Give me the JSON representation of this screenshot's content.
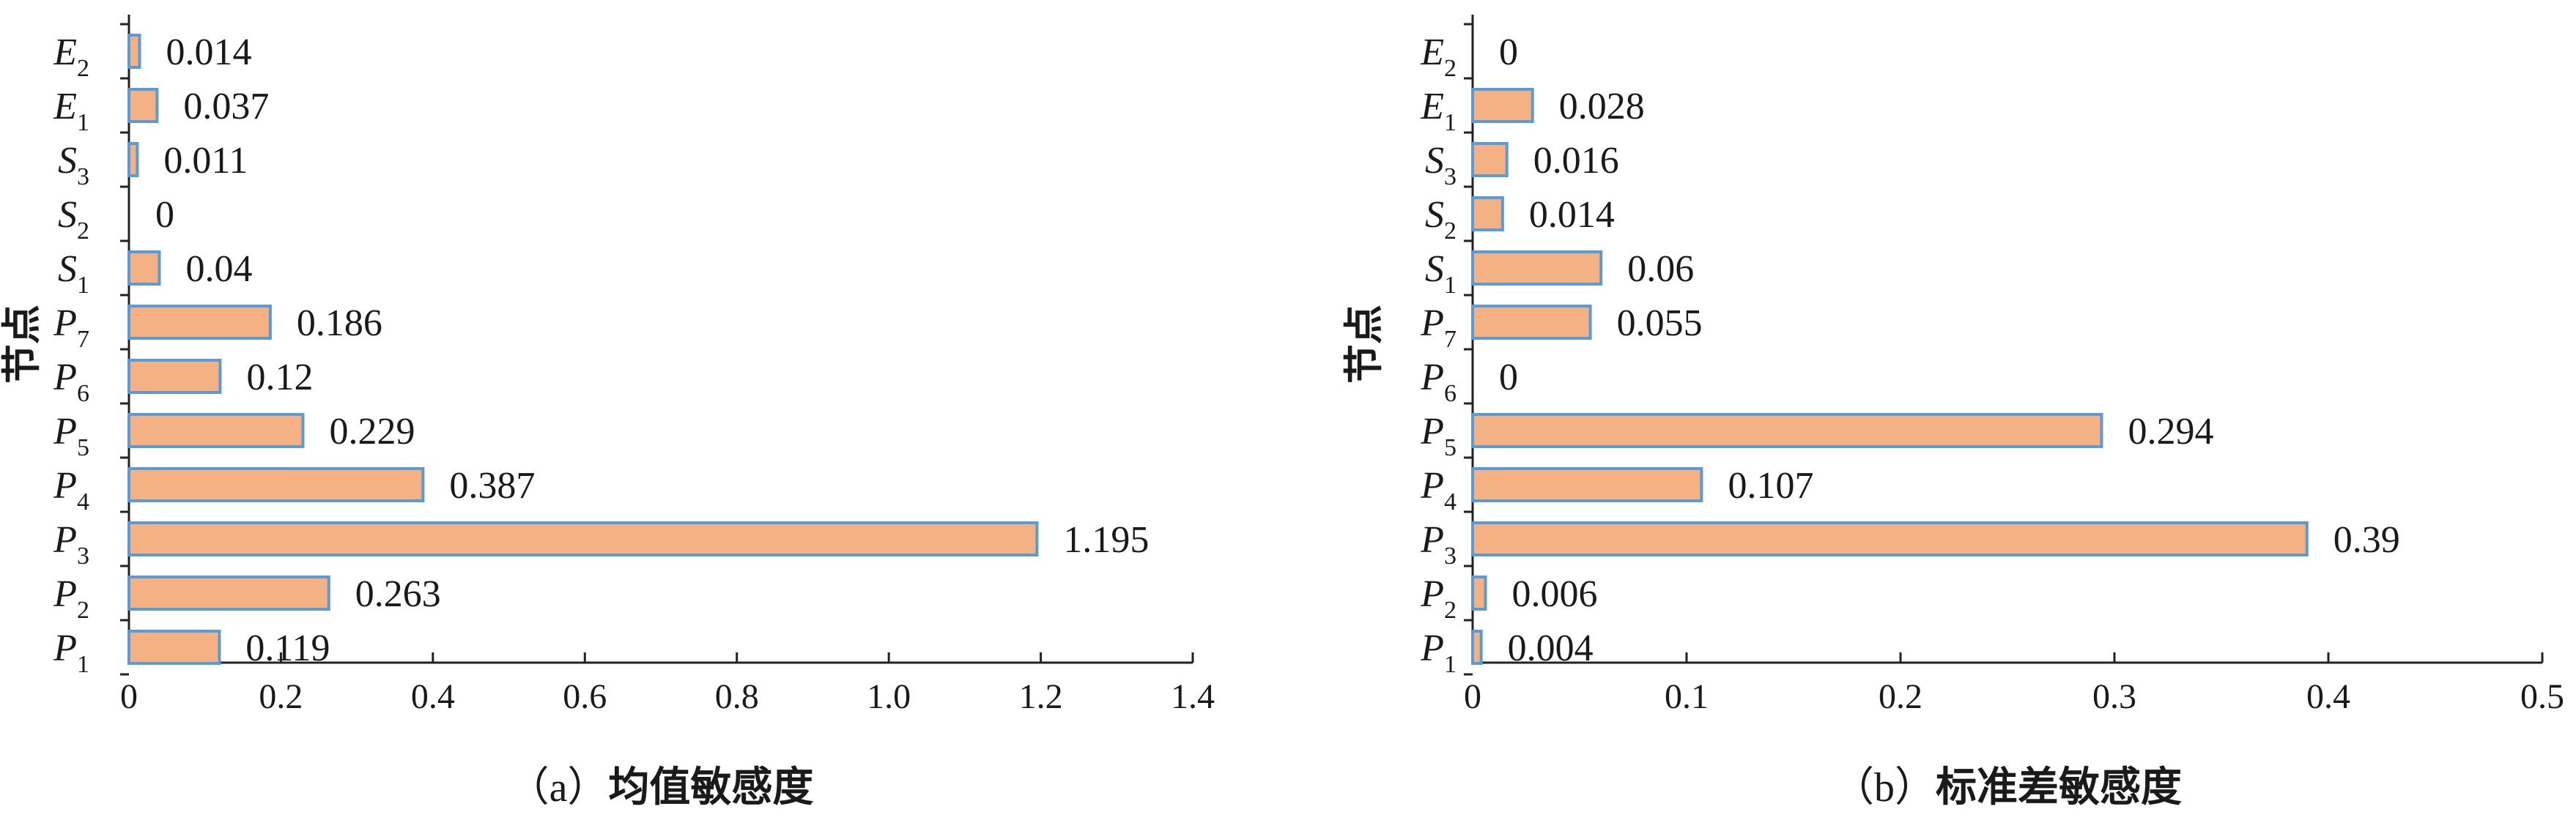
{
  "chart_data": [
    {
      "type": "bar",
      "orientation": "horizontal",
      "caption_prefix": "（a）",
      "caption_title": "均值敏感度",
      "ylabel": "节点",
      "xlabel": "",
      "xlim": [
        0,
        1.4
      ],
      "xticks": [
        "0",
        "0.2",
        "0.4",
        "0.6",
        "0.8",
        "1.0",
        "1.2",
        "1.4"
      ],
      "categories": [
        {
          "base": "P",
          "sub": "1"
        },
        {
          "base": "P",
          "sub": "2"
        },
        {
          "base": "P",
          "sub": "3"
        },
        {
          "base": "P",
          "sub": "4"
        },
        {
          "base": "P",
          "sub": "5"
        },
        {
          "base": "P",
          "sub": "6"
        },
        {
          "base": "P",
          "sub": "7"
        },
        {
          "base": "S",
          "sub": "1"
        },
        {
          "base": "S",
          "sub": "2"
        },
        {
          "base": "S",
          "sub": "3"
        },
        {
          "base": "E",
          "sub": "1"
        },
        {
          "base": "E",
          "sub": "2"
        }
      ],
      "values": [
        0.119,
        0.263,
        1.195,
        0.387,
        0.229,
        0.12,
        0.186,
        0.04,
        0,
        0.011,
        0.037,
        0.014
      ],
      "value_labels": [
        "0.119",
        "0.263",
        "1.195",
        "0.387",
        "0.229",
        "0.12",
        "0.186",
        "0.04",
        "0",
        "0.011",
        "0.037",
        "0.014"
      ],
      "grid": false,
      "colors": {
        "bar_fill": "#f4b183",
        "bar_stroke": "#5b9bd5"
      }
    },
    {
      "type": "bar",
      "orientation": "horizontal",
      "caption_prefix": "（b）",
      "caption_title": "标准差敏感度",
      "ylabel": "节点",
      "xlabel": "",
      "xlim": [
        0,
        0.5
      ],
      "xticks": [
        "0",
        "0.1",
        "0.2",
        "0.3",
        "0.4",
        "0.5"
      ],
      "categories": [
        {
          "base": "P",
          "sub": "1"
        },
        {
          "base": "P",
          "sub": "2"
        },
        {
          "base": "P",
          "sub": "3"
        },
        {
          "base": "P",
          "sub": "4"
        },
        {
          "base": "P",
          "sub": "5"
        },
        {
          "base": "P",
          "sub": "6"
        },
        {
          "base": "P",
          "sub": "7"
        },
        {
          "base": "S",
          "sub": "1"
        },
        {
          "base": "S",
          "sub": "2"
        },
        {
          "base": "S",
          "sub": "3"
        },
        {
          "base": "E",
          "sub": "1"
        },
        {
          "base": "E",
          "sub": "2"
        }
      ],
      "values": [
        0.004,
        0.006,
        0.39,
        0.107,
        0.294,
        0,
        0.055,
        0.06,
        0.014,
        0.016,
        0.028,
        0
      ],
      "value_labels": [
        "0.004",
        "0.006",
        "0.39",
        "0.107",
        "0.294",
        "0",
        "0.055",
        "0.06",
        "0.014",
        "0.016",
        "0.028",
        "0"
      ],
      "grid": false,
      "colors": {
        "bar_fill": "#f4b183",
        "bar_stroke": "#5b9bd5"
      }
    }
  ]
}
